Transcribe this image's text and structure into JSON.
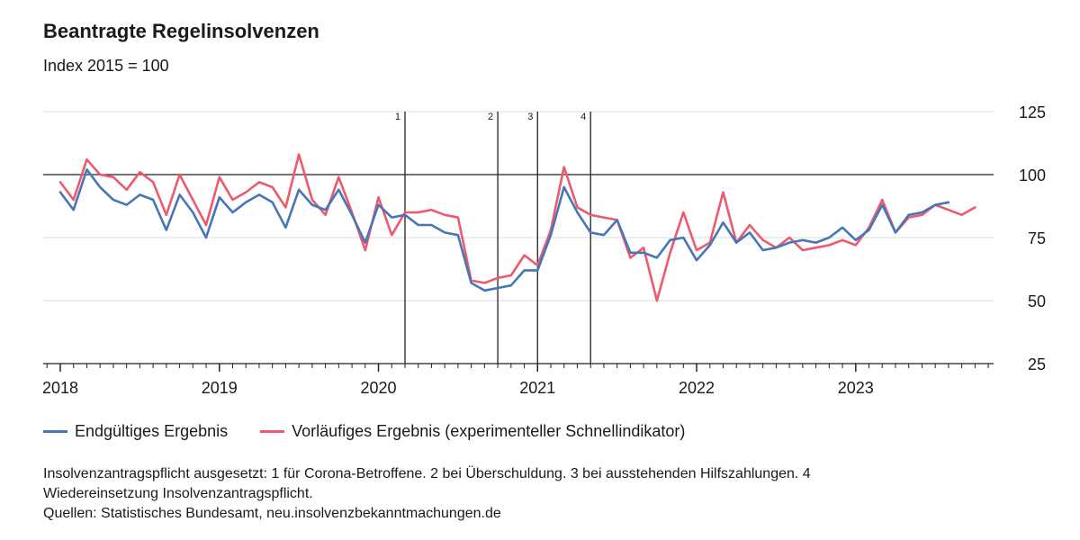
{
  "header": {
    "title": "Beantragte Regelinsolvenzen",
    "subtitle": "Index 2015 = 100"
  },
  "legend": {
    "final": "Endgültiges Ergebnis",
    "prelim": "Vorläufiges Ergebnis (experimenteller Schnellindikator)"
  },
  "notes": {
    "line1": "Insolvenzantragspflicht ausgesetzt: 1 für Corona-Betroffene. 2 bei Überschuldung. 3 bei ausstehenden Hilfszahlungen. 4",
    "line2": "Wiedereinsetzung Insolvenzantragspflicht.",
    "line3": "Quellen: Statistisches Bundesamt, neu.insolvenzbekanntmachungen.de"
  },
  "colors": {
    "final": "#4676b8",
    "prelim": "#ed5a6e"
  },
  "chart_data": {
    "type": "line",
    "ylim": [
      25,
      125
    ],
    "yticks": [
      25,
      50,
      75,
      100,
      125
    ],
    "reference_line": 100,
    "start": "2018-01",
    "x_tick_labels": [
      "2018",
      "2019",
      "2020",
      "2021",
      "2022",
      "2023"
    ],
    "grid": true,
    "events": [
      {
        "label": "1",
        "month": "2020-03"
      },
      {
        "label": "2",
        "month": "2020-10"
      },
      {
        "label": "3",
        "month": "2021-01"
      },
      {
        "label": "4",
        "month": "2021-05"
      }
    ],
    "series": [
      {
        "name": "Endgültiges Ergebnis",
        "key": "final",
        "values": [
          93,
          86,
          102,
          95,
          90,
          88,
          92,
          90,
          78,
          92,
          85,
          75,
          91,
          85,
          89,
          92,
          89,
          79,
          94,
          88,
          86,
          94,
          84,
          73,
          88,
          83,
          84,
          80,
          80,
          77,
          76,
          57,
          54,
          55,
          56,
          62,
          62,
          76,
          95,
          85,
          77,
          76,
          82,
          69,
          69,
          67,
          74,
          75,
          66,
          72,
          81,
          73,
          77,
          70,
          71,
          73,
          74,
          73,
          75,
          79,
          74,
          78,
          88,
          77,
          84,
          85,
          88,
          89
        ]
      },
      {
        "name": "Vorläufiges Ergebnis (experimenteller Schnellindikator)",
        "key": "prelim",
        "values": [
          97,
          90,
          106,
          100,
          99,
          94,
          101,
          97,
          84,
          100,
          90,
          80,
          99,
          90,
          93,
          97,
          95,
          87,
          108,
          90,
          84,
          99,
          85,
          70,
          91,
          76,
          85,
          85,
          86,
          84,
          83,
          58,
          57,
          59,
          60,
          68,
          64,
          78,
          103,
          87,
          84,
          83,
          82,
          67,
          71,
          50,
          69,
          85,
          70,
          73,
          93,
          73,
          80,
          74,
          71,
          75,
          70,
          71,
          72,
          74,
          72,
          79,
          90,
          77,
          83,
          84,
          88,
          86,
          84,
          87
        ]
      }
    ]
  }
}
